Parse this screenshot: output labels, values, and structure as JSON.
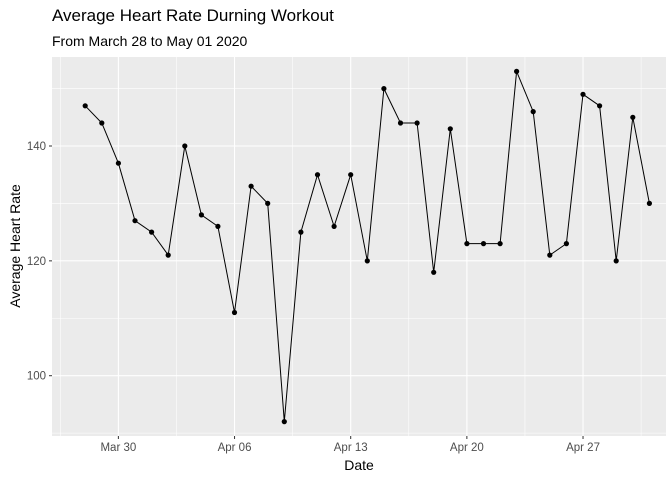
{
  "chart_data": {
    "type": "line",
    "title": "Average Heart Rate Durning Workout",
    "subtitle": "From March 28 to May 01 2020",
    "xlabel": "Date",
    "ylabel": "Average Heart Rate",
    "x_ticks": [
      {
        "date": "2020-03-30",
        "label": "Mar 30"
      },
      {
        "date": "2020-04-06",
        "label": "Apr 06"
      },
      {
        "date": "2020-04-13",
        "label": "Apr 13"
      },
      {
        "date": "2020-04-20",
        "label": "Apr 20"
      },
      {
        "date": "2020-04-27",
        "label": "Apr 27"
      }
    ],
    "y_ticks": [
      100,
      120,
      140
    ],
    "xlim": [
      "2020-03-26",
      "2020-05-02"
    ],
    "ylim": [
      89.5,
      155.5
    ],
    "grid": true,
    "background": "#ebebeb",
    "series": [
      {
        "color": "#000000",
        "x": [
          "2020-03-28",
          "2020-03-29",
          "2020-03-30",
          "2020-03-31",
          "2020-04-01",
          "2020-04-02",
          "2020-04-03",
          "2020-04-04",
          "2020-04-05",
          "2020-04-06",
          "2020-04-07",
          "2020-04-08",
          "2020-04-09",
          "2020-04-10",
          "2020-04-11",
          "2020-04-12",
          "2020-04-13",
          "2020-04-14",
          "2020-04-15",
          "2020-04-16",
          "2020-04-17",
          "2020-04-18",
          "2020-04-19",
          "2020-04-20",
          "2020-04-21",
          "2020-04-22",
          "2020-04-23",
          "2020-04-24",
          "2020-04-25",
          "2020-04-26",
          "2020-04-27",
          "2020-04-28",
          "2020-04-29",
          "2020-04-30",
          "2020-05-01"
        ],
        "y": [
          147,
          144,
          137,
          127,
          125,
          121,
          140,
          128,
          126,
          111,
          133,
          130,
          92,
          125,
          135,
          126,
          135,
          120,
          150,
          144,
          144,
          118,
          143,
          123,
          123,
          123,
          153,
          146,
          121,
          123,
          149,
          147,
          120,
          145,
          130
        ]
      }
    ]
  }
}
